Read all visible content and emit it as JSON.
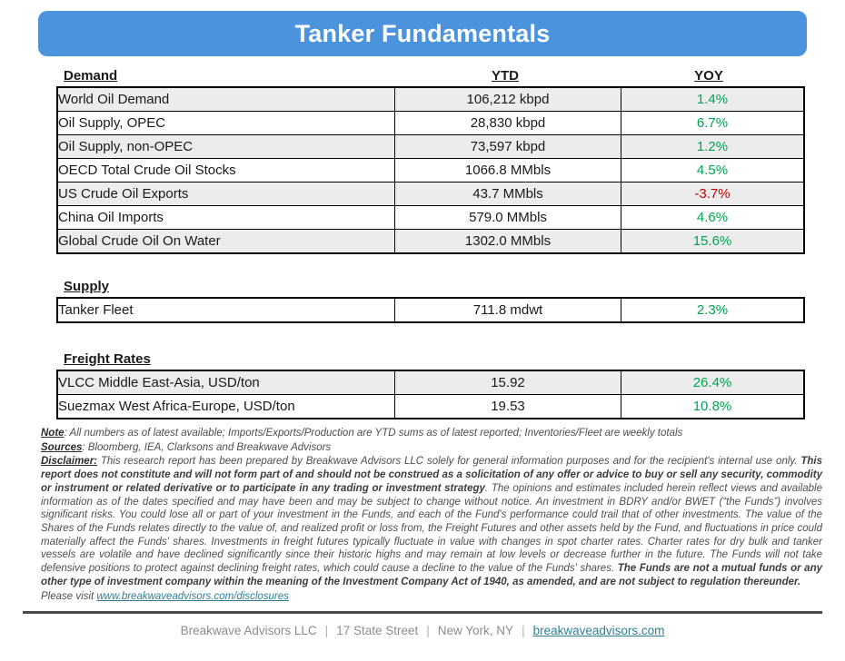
{
  "title": "Tanker Fundamentals",
  "columns": {
    "ytd": "YTD",
    "yoy": "YOY"
  },
  "colors": {
    "banner_blue": "#4b94dd",
    "positive_green": "#00a551",
    "negative_red": "#c00000",
    "row_shade": "#ececec",
    "link_teal": "#2e7f99"
  },
  "sections": [
    {
      "heading": "Demand",
      "rows": [
        {
          "label": "World Oil Demand",
          "value": "106,212 kbpd",
          "yoy": "1.4%",
          "dir": "pos",
          "shaded": true
        },
        {
          "label": "Oil Supply, OPEC",
          "value": "28,830 kbpd",
          "yoy": "6.7%",
          "dir": "pos",
          "shaded": false
        },
        {
          "label": "Oil Supply, non-OPEC",
          "value": "73,597 kbpd",
          "yoy": "1.2%",
          "dir": "pos",
          "shaded": true
        },
        {
          "label": "OECD Total Crude Oil Stocks",
          "value": "1066.8 MMbls",
          "yoy": "4.5%",
          "dir": "pos",
          "shaded": false
        },
        {
          "label": "US Crude Oil Exports",
          "value": "43.7 MMbls",
          "yoy": "-3.7%",
          "dir": "neg",
          "shaded": true
        },
        {
          "label": "China Oil Imports",
          "value": "579.0 MMbls",
          "yoy": "4.6%",
          "dir": "pos",
          "shaded": false
        },
        {
          "label": "Global Crude Oil On Water",
          "value": "1302.0 MMbls",
          "yoy": "15.6%",
          "dir": "pos",
          "shaded": true
        }
      ]
    },
    {
      "heading": "Supply",
      "rows": [
        {
          "label": "Tanker Fleet",
          "value": "711.8 mdwt",
          "yoy": "2.3%",
          "dir": "pos",
          "shaded": false
        }
      ]
    },
    {
      "heading": "Freight Rates",
      "rows": [
        {
          "label": "VLCC Middle East-Asia, USD/ton",
          "value": "15.92",
          "yoy": "26.4%",
          "dir": "pos",
          "shaded": true
        },
        {
          "label": "Suezmax West Africa-Europe, USD/ton",
          "value": "19.53",
          "yoy": "10.8%",
          "dir": "pos",
          "shaded": false
        }
      ]
    }
  ],
  "notes": {
    "note_label": "Note",
    "note_text": ": All numbers as of latest available; Imports/Exports/Production are YTD sums as of latest reported; Inventories/Fleet are weekly totals",
    "sources_label": "Sources",
    "sources_text": ": Bloomberg, IEA, Clarksons and Breakwave Advisors",
    "disclaimer_segments": [
      {
        "style": "label",
        "text": "Disclaimer:"
      },
      {
        "style": "normal",
        "text": " This research report has been prepared by Breakwave Advisors LLC solely for general information purposes and for the recipient's internal use only. "
      },
      {
        "style": "bold",
        "text": "This report does not constitute and will not form part of and should not be construed as a solicitation of any offer or advice to buy or sell any security, commodity or instrument or related derivative or to participate in any trading or investment strategy"
      },
      {
        "style": "normal",
        "text": ". The opinions and estimates included herein reflect views and available information as of the dates specified and may have been and may be subject to change without notice. An investment in BDRY and/or BWET (“the Funds”) involves significant risks. You could lose all or part of your investment in the Funds, and each of the Fund's performance could trail that of other investments. The value of the Shares of the Funds relates directly to the value of, and realized profit or loss from, the Freight Futures and other assets held by the Fund, and fluctuations in price could materially affect the Funds' shares. Investments in freight futures typically fluctuate in value with changes in spot charter rates. Charter rates for dry bulk and tanker vessels are volatile and have declined significantly since their historic highs and may remain at low levels or decrease further in the future. The Funds will not take defensive positions to protect against declining freight rates, which could cause a decline to the value of the Funds' shares. "
      },
      {
        "style": "bold",
        "text": "The Funds are not a mutual funds or any other type of investment company within the meaning of the Investment Company Act of 1940, as amended, and are not subject to regulation thereunder."
      }
    ],
    "visit_text": "Please visit ",
    "visit_link": "www.breakwaveadvisors.com/disclosures"
  },
  "footer": {
    "separator": "|",
    "items": [
      "Breakwave Advisors LLC",
      "17 State Street",
      "New York, NY"
    ],
    "link": "breakwaveadvisors.com"
  }
}
